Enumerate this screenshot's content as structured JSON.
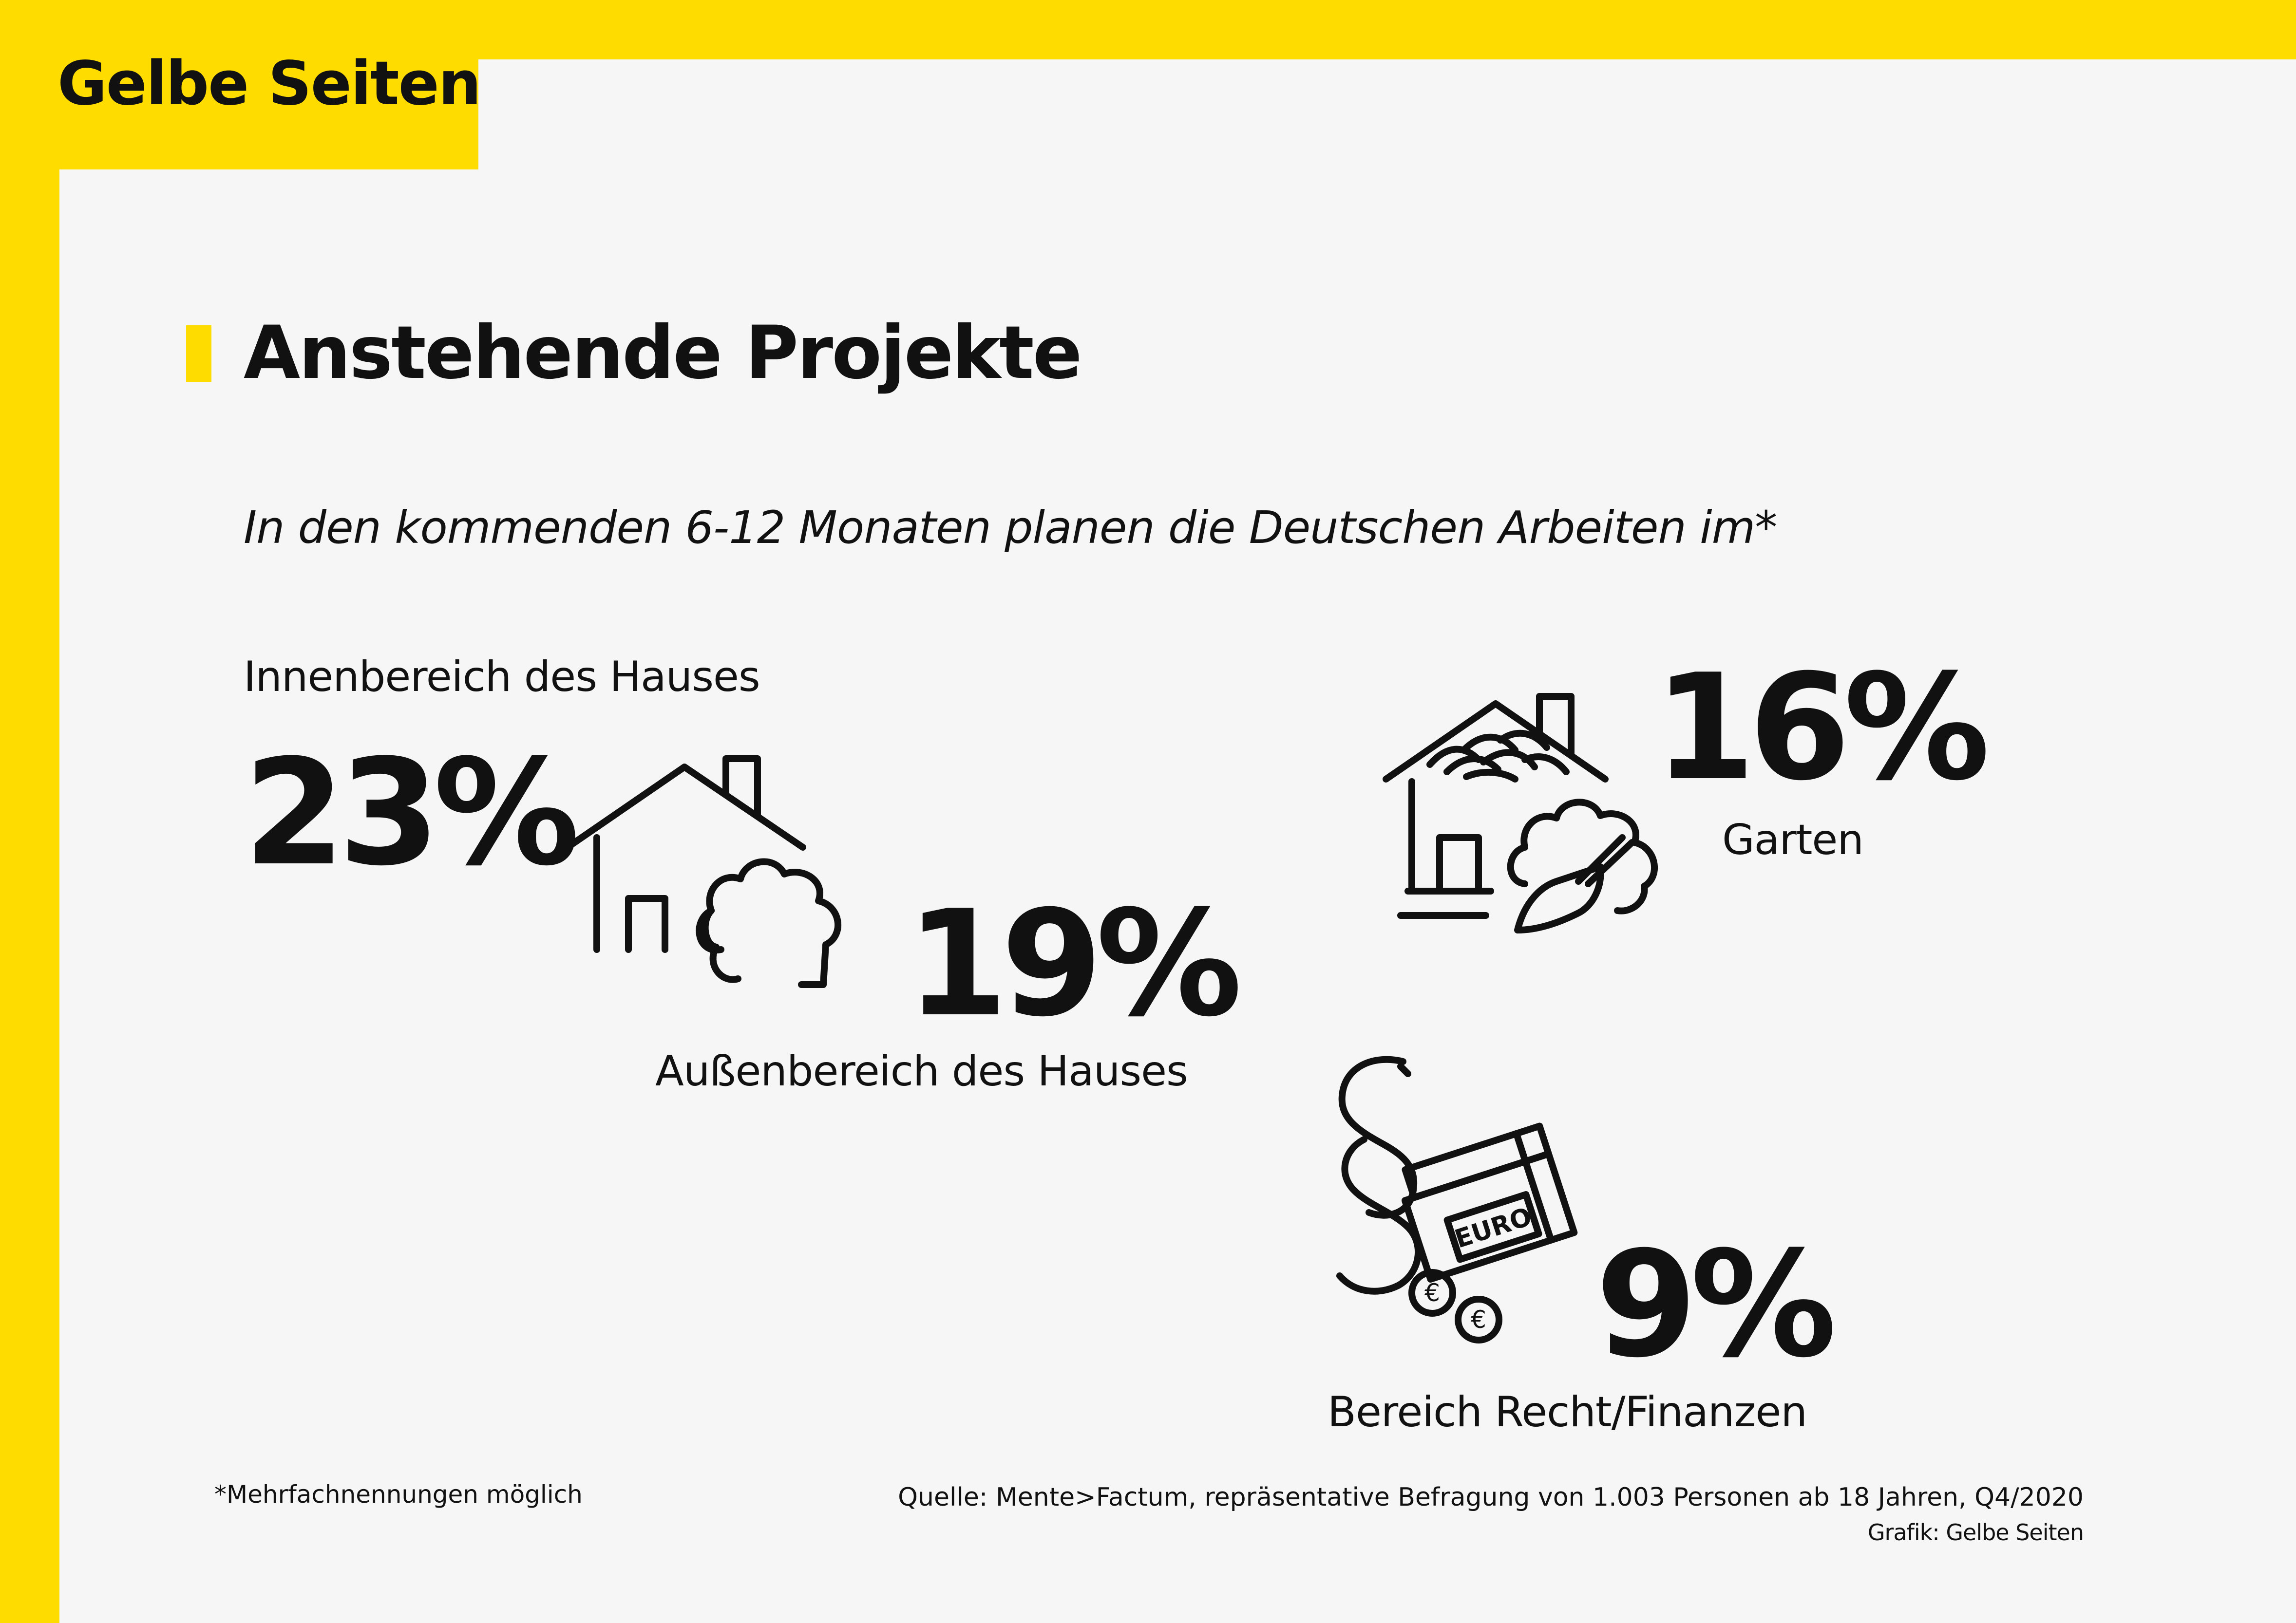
{
  "brand": {
    "name": "Gelbe Seiten",
    "accent": "#ffdc00"
  },
  "title": "Anstehende Projekte",
  "subtitle": "In den kommenden 6-12 Monaten planen die Deutschen Arbeiten im*",
  "items": [
    {
      "label": "Innenbereich des Hauses",
      "value": "23%",
      "icon": "house-icon"
    },
    {
      "label": "Außenbereich des Hauses",
      "value": "19%",
      "icon": "house-with-bush-icon"
    },
    {
      "label": "Garten",
      "value": "16%",
      "icon": "house-garden-trowel-icon"
    },
    {
      "label": "Bereich Recht/Finanzen",
      "value": "9%",
      "icon": "paragraph-money-icon",
      "icon_text": "EURO"
    }
  ],
  "footnote": "*Mehrfachnennungen möglich",
  "source": "Quelle: Mente>Factum, repräsentative Befragung von 1.003 Personen ab 18 Jahren, Q4/2020",
  "credit": "Grafik: Gelbe Seiten"
}
